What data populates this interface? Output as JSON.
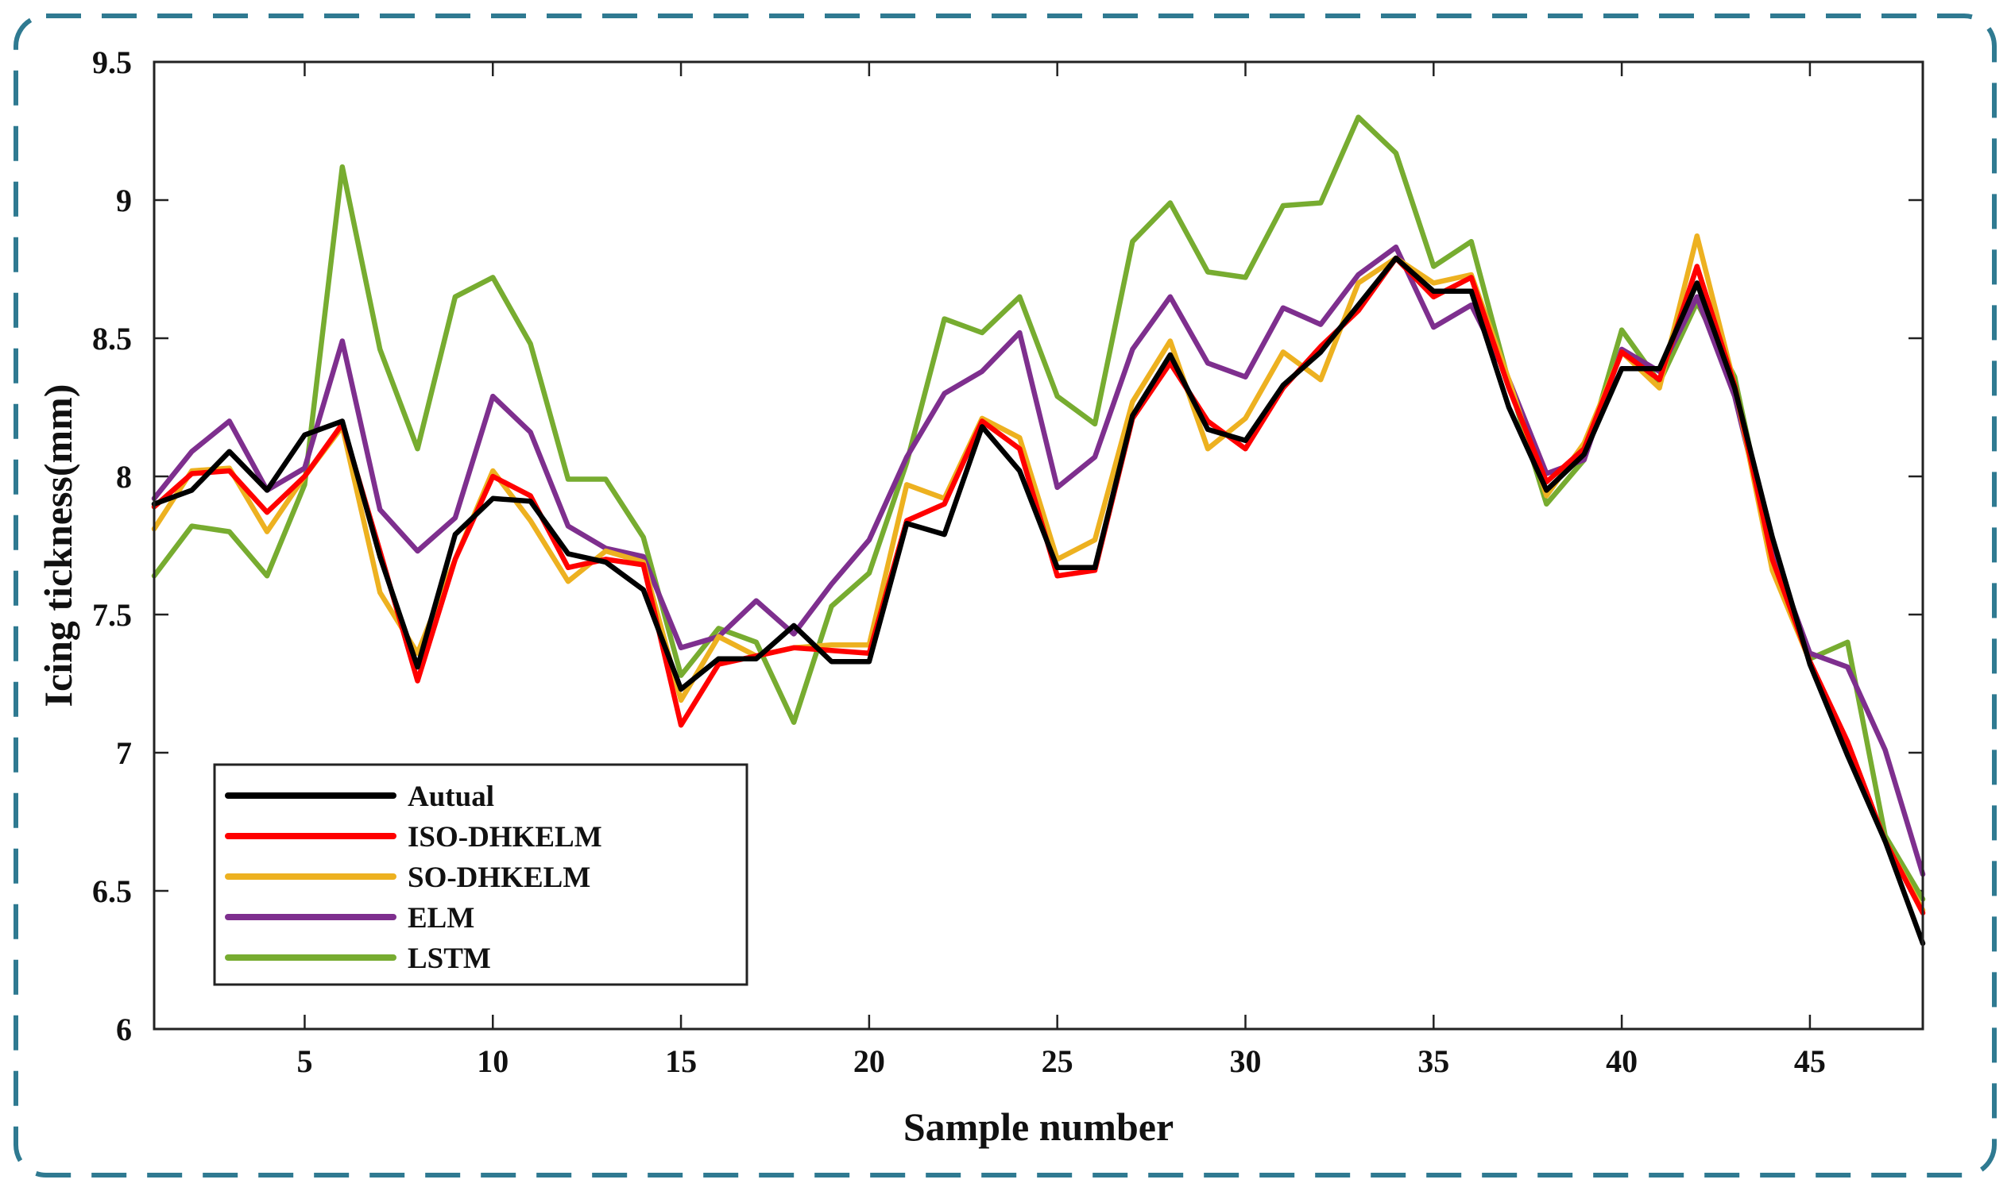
{
  "chart_data": {
    "type": "line",
    "title": "",
    "xlabel": "Sample number",
    "ylabel": "Icing tickness(mm)",
    "xlim": [
      1,
      48
    ],
    "ylim": [
      6,
      9.5
    ],
    "xticks": [
      5,
      10,
      15,
      20,
      25,
      30,
      35,
      40,
      45
    ],
    "yticks": [
      6,
      6.5,
      7,
      7.5,
      8,
      8.5,
      9,
      9.5
    ],
    "ytick_labels": [
      "6",
      "6.5",
      "7",
      "7.5",
      "8",
      "8.5",
      "9",
      "9.5"
    ],
    "legend_position": "bottom-left",
    "x": [
      1,
      2,
      3,
      4,
      5,
      6,
      7,
      8,
      9,
      10,
      11,
      12,
      13,
      14,
      15,
      16,
      17,
      18,
      19,
      20,
      21,
      22,
      23,
      24,
      25,
      26,
      27,
      28,
      29,
      30,
      31,
      32,
      33,
      34,
      35,
      36,
      37,
      38,
      39,
      40,
      41,
      42,
      43,
      44,
      45,
      46,
      47,
      48
    ],
    "series": [
      {
        "name": "Autual",
        "color": "#000000",
        "values": [
          7.9,
          7.95,
          8.09,
          7.95,
          8.15,
          8.2,
          7.71,
          7.31,
          7.79,
          7.92,
          7.91,
          7.72,
          7.69,
          7.59,
          7.23,
          7.34,
          7.34,
          7.46,
          7.33,
          7.33,
          7.83,
          7.79,
          8.18,
          8.02,
          7.67,
          7.67,
          8.22,
          8.44,
          8.17,
          8.13,
          8.33,
          8.45,
          8.62,
          8.79,
          8.67,
          8.67,
          8.25,
          7.95,
          8.08,
          8.39,
          8.39,
          8.7,
          8.32,
          7.78,
          7.32,
          6.99,
          6.68,
          6.31
        ]
      },
      {
        "name": "ISO-DHKELM",
        "color": "#ff0000",
        "values": [
          7.89,
          8.01,
          8.02,
          7.87,
          8.0,
          8.19,
          7.73,
          7.26,
          7.7,
          8.0,
          7.93,
          7.67,
          7.7,
          7.68,
          7.1,
          7.32,
          7.35,
          7.38,
          7.37,
          7.36,
          7.84,
          7.9,
          8.2,
          8.1,
          7.64,
          7.66,
          8.21,
          8.41,
          8.2,
          8.1,
          8.32,
          8.47,
          8.6,
          8.79,
          8.65,
          8.72,
          8.32,
          7.98,
          8.1,
          8.45,
          8.35,
          8.76,
          8.33,
          7.7,
          7.33,
          7.04,
          6.68,
          6.42
        ]
      },
      {
        "name": "SO-DHKELM",
        "color": "#edb120",
        "values": [
          7.81,
          8.02,
          8.03,
          7.8,
          8.0,
          8.18,
          7.58,
          7.36,
          7.7,
          8.02,
          7.84,
          7.62,
          7.73,
          7.69,
          7.19,
          7.42,
          7.35,
          7.38,
          7.39,
          7.39,
          7.97,
          7.92,
          8.21,
          8.14,
          7.7,
          7.77,
          8.27,
          8.49,
          8.1,
          8.21,
          8.45,
          8.35,
          8.7,
          8.79,
          8.7,
          8.73,
          8.35,
          7.93,
          8.12,
          8.45,
          8.32,
          8.87,
          8.33,
          7.66,
          7.33,
          7.03,
          6.68,
          6.43
        ]
      },
      {
        "name": "ELM",
        "color": "#7e2f8e",
        "values": [
          7.92,
          8.09,
          8.2,
          7.95,
          8.03,
          8.49,
          7.88,
          7.73,
          7.85,
          8.29,
          8.16,
          7.82,
          7.74,
          7.71,
          7.38,
          7.42,
          7.55,
          7.43,
          7.61,
          7.77,
          8.07,
          8.3,
          8.38,
          8.52,
          7.96,
          8.07,
          8.46,
          8.65,
          8.41,
          8.36,
          8.61,
          8.55,
          8.73,
          8.83,
          8.54,
          8.62,
          8.35,
          8.01,
          8.06,
          8.46,
          8.38,
          8.65,
          8.29,
          7.73,
          7.36,
          7.31,
          7.01,
          6.56
        ]
      },
      {
        "name": "LSTM",
        "color": "#77ac30",
        "values": [
          7.64,
          7.82,
          7.8,
          7.64,
          7.97,
          9.12,
          8.46,
          8.1,
          8.65,
          8.72,
          8.48,
          7.99,
          7.99,
          7.78,
          7.28,
          7.45,
          7.4,
          7.11,
          7.53,
          7.65,
          8.05,
          8.57,
          8.52,
          8.65,
          8.29,
          8.19,
          8.85,
          8.99,
          8.74,
          8.72,
          8.98,
          8.99,
          9.3,
          9.17,
          8.76,
          8.85,
          8.34,
          7.9,
          8.06,
          8.53,
          8.34,
          8.63,
          8.36,
          7.72,
          7.34,
          7.4,
          6.7,
          6.47
        ]
      }
    ]
  }
}
